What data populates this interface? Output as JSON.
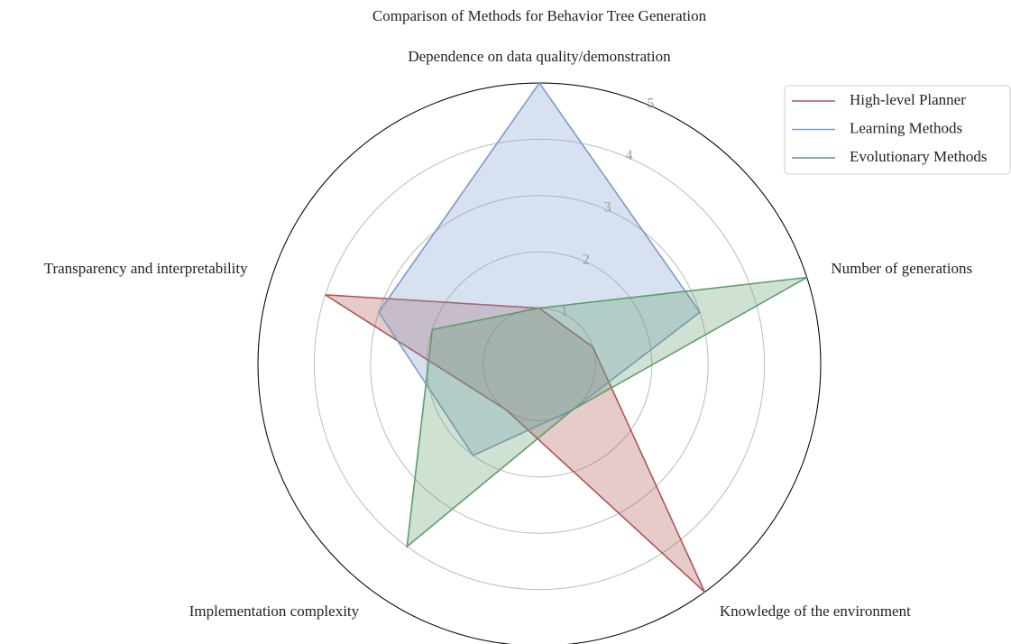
{
  "chart_data": {
    "type": "radar",
    "title": "Comparison of Methods for Behavior Tree Generation",
    "categories": [
      "Dependence on data quality/demonstration",
      "Number of generations",
      "Knowledge of the environment",
      "Implementation complexity",
      "Transparency and interpretability"
    ],
    "series": [
      {
        "name": "High-level Planner",
        "color": "#b05252",
        "values": [
          1,
          1,
          5,
          1,
          4
        ]
      },
      {
        "name": "Learning Methods",
        "color": "#7a9cc9",
        "values": [
          5,
          3,
          1,
          2,
          3
        ]
      },
      {
        "name": "Evolutionary Methods",
        "color": "#5e9c6c",
        "values": [
          1,
          5,
          1,
          4,
          2
        ]
      }
    ],
    "rlim": [
      0,
      5
    ],
    "rticks": [
      1,
      2,
      3,
      4,
      5
    ],
    "grid": true,
    "legend": "upper right"
  }
}
